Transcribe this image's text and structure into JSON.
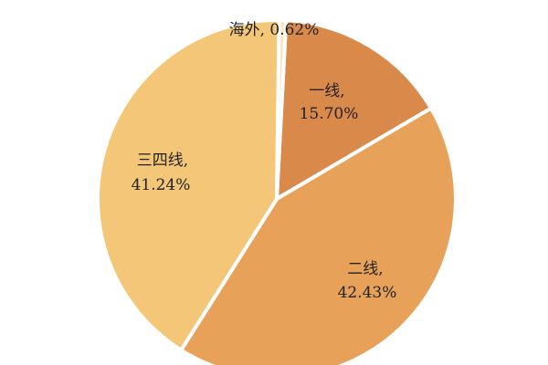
{
  "chart_data": {
    "type": "pie",
    "slices": [
      {
        "name": "一线",
        "value": 15.7,
        "label": "15.70%",
        "color": "#D9894A"
      },
      {
        "name": "二线",
        "value": 42.43,
        "label": "42.43%",
        "color": "#E7A159"
      },
      {
        "name": "三四线",
        "value": 41.24,
        "label": "41.24%",
        "color": "#F3C678"
      },
      {
        "name": "海外",
        "value": 0.62,
        "label": "0.62%",
        "color": "#FBE6BD"
      }
    ]
  }
}
